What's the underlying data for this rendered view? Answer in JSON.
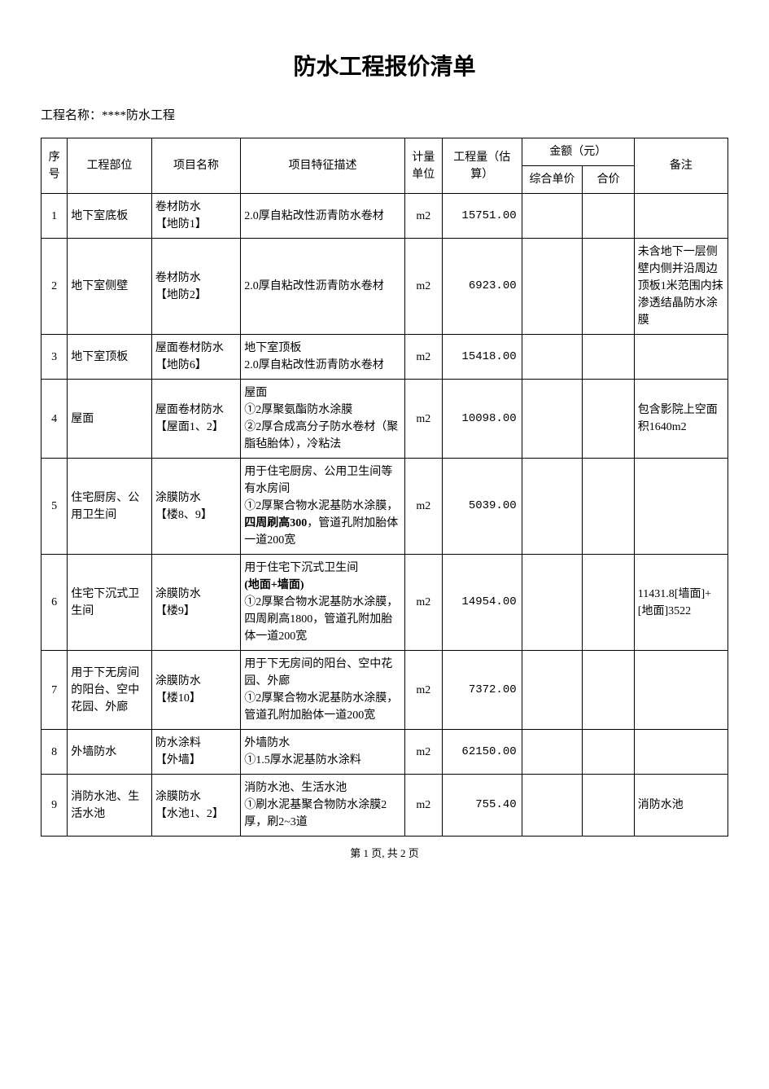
{
  "title": "防水工程报价清单",
  "project_label": "工程名称：****防水工程",
  "footer": "第 1 页, 共 2 页",
  "columns": {
    "seq": "序号",
    "part": "工程部位",
    "item": "项目名称",
    "desc": "项目特征描述",
    "unit": "计量单位",
    "qty": "工程量（估算）",
    "amount_group": "金额（元）",
    "unit_price": "综合单价",
    "total_price": "合价",
    "note": "备注"
  },
  "rows": [
    {
      "seq": "1",
      "part": "地下室底板",
      "item": "卷材防水\n【地防1】",
      "desc": "2.0厚自粘改性沥青防水卷材",
      "unit": "m2",
      "qty": "15751.00",
      "note": ""
    },
    {
      "seq": "2",
      "part": "地下室侧壁",
      "item": "卷材防水\n【地防2】",
      "desc": "2.0厚自粘改性沥青防水卷材",
      "unit": "m2",
      "qty": "6923.00",
      "note": "未含地下一层侧壁内侧并沿周边顶板1米范围内抹渗透结晶防水涂膜"
    },
    {
      "seq": "3",
      "part": "地下室顶板",
      "item": "屋面卷材防水\n【地防6】",
      "desc": "地下室顶板\n2.0厚自粘改性沥青防水卷材",
      "unit": "m2",
      "qty": "15418.00",
      "note": ""
    },
    {
      "seq": "4",
      "part": "屋面",
      "item": "屋面卷材防水\n【屋面1、2】",
      "desc": "屋面\n①2厚聚氨酯防水涂膜\n②2厚合成高分子防水卷材（聚脂毡胎体），冷粘法",
      "unit": "m2",
      "qty": "10098.00",
      "note": "包含影院上空面积1640m2"
    },
    {
      "seq": "5",
      "part": "住宅厨房、公用卫生间",
      "item": "涂膜防水\n【楼8、9】",
      "desc_pre": "用于住宅厨房、公用卫生间等有水房间\n①2厚聚合物水泥基防水涂膜，",
      "desc_bold": "四周刷高300",
      "desc_post": "，管道孔附加胎体一道200宽",
      "unit": "m2",
      "qty": "5039.00",
      "note": ""
    },
    {
      "seq": "6",
      "part": "住宅下沉式卫生间",
      "item": "涂膜防水\n【楼9】",
      "desc_pre": "用于住宅下沉式卫生间",
      "desc_bold": "(地面+墙面)",
      "desc_post": "\n①2厚聚合物水泥基防水涂膜，四周刷高1800，管道孔附加胎体一道200宽",
      "unit": "m2",
      "qty": "14954.00",
      "note": "11431.8[墙面]+[地面]3522"
    },
    {
      "seq": "7",
      "part": "用于下无房间的阳台、空中花园、外廊",
      "item": "涂膜防水\n【楼10】",
      "desc": "用于下无房间的阳台、空中花园、外廊\n①2厚聚合物水泥基防水涂膜，管道孔附加胎体一道200宽",
      "unit": "m2",
      "qty": "7372.00",
      "note": ""
    },
    {
      "seq": "8",
      "part": "外墙防水",
      "item": "防水涂料\n【外墙】",
      "desc": "外墙防水\n①1.5厚水泥基防水涂料",
      "unit": "m2",
      "qty": "62150.00",
      "note": ""
    },
    {
      "seq": "9",
      "part": "消防水池、生活水池",
      "item": "涂膜防水\n【水池1、2】",
      "desc": "消防水池、生活水池\n①刷水泥基聚合物防水涂膜2厚，刷2~3道",
      "unit": "m2",
      "qty": "755.40",
      "note": "消防水池"
    }
  ],
  "style": {
    "background_color": "#ffffff",
    "border_color": "#000000",
    "text_color": "#000000",
    "title_fontsize": 28,
    "cell_fontsize": 14,
    "font_family": "SimSun"
  }
}
